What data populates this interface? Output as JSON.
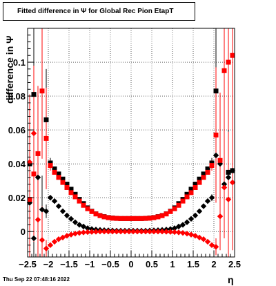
{
  "chart_data": {
    "type": "scatter",
    "title": "Fitted difference in  Ψ  for Global Rec Pion EtapT",
    "xlabel": "η",
    "ylabel": "difference in  Ψ",
    "xlim": [
      -2.5,
      2.5
    ],
    "ylim": [
      -0.015,
      0.12
    ],
    "x_ticks": [
      -2.5,
      -2,
      -1.5,
      -1,
      -0.5,
      0,
      0.5,
      1,
      1.5,
      2,
      2.5
    ],
    "x_tick_labels": [
      "−2.5",
      "−2",
      "−1.5",
      "−1",
      "−0.5",
      "0",
      "0.5",
      "1",
      "1.5",
      "2",
      "2.5"
    ],
    "y_ticks": [
      0,
      0.02,
      0.04,
      0.06,
      0.08,
      0.1
    ],
    "y_tick_labels": [
      "0",
      "0.02",
      "0.04",
      "0.06",
      "0.08",
      "0.1"
    ],
    "grid": true,
    "series": [
      {
        "color": "#000000",
        "marker": "square",
        "x": [
          -2.45,
          -2.35,
          -2.05,
          -1.95,
          -1.85,
          -1.75,
          -1.65,
          -1.55,
          -1.45,
          -1.35,
          -1.25,
          -1.15,
          -1.05,
          -0.95,
          -0.85,
          -0.75,
          -0.65,
          -0.55,
          -0.45,
          -0.35,
          -0.25,
          -0.15,
          -0.05,
          0.05,
          0.15,
          0.25,
          0.35,
          0.45,
          0.55,
          0.65,
          0.75,
          0.85,
          0.95,
          1.05,
          1.15,
          1.25,
          1.35,
          1.45,
          1.55,
          1.65,
          1.75,
          1.85,
          1.95,
          2.05,
          2.35,
          2.45
        ],
        "y": [
          0.04,
          0.081,
          0.066,
          0.0405,
          0.037,
          0.034,
          0.031,
          0.028,
          0.025,
          0.022,
          0.019,
          0.0165,
          0.014,
          0.012,
          0.0105,
          0.0095,
          0.0088,
          0.0083,
          0.008,
          0.0078,
          0.0077,
          0.0077,
          0.0077,
          0.0077,
          0.0077,
          0.0077,
          0.0078,
          0.008,
          0.0083,
          0.0088,
          0.0095,
          0.0105,
          0.012,
          0.014,
          0.0165,
          0.019,
          0.022,
          0.025,
          0.028,
          0.031,
          0.034,
          0.037,
          0.0405,
          0.083,
          0.035,
          0.036
        ],
        "yerr": [
          0.04,
          0.04,
          0.03,
          0.003,
          0.001,
          0.001,
          0.001,
          0.001,
          0.001,
          0.001,
          0.001,
          0.001,
          0.001,
          0.001,
          0.001,
          0.001,
          0.001,
          0.001,
          0.001,
          0.001,
          0.001,
          0.001,
          0.001,
          0.001,
          0.001,
          0.001,
          0.001,
          0.001,
          0.001,
          0.001,
          0.001,
          0.001,
          0.001,
          0.001,
          0.001,
          0.001,
          0.001,
          0.001,
          0.001,
          0.001,
          0.001,
          0.001,
          0.003,
          0.04,
          0.03,
          0.04
        ]
      },
      {
        "color": "#000000",
        "marker": "diamond",
        "x": [
          -2.45,
          -2.35,
          -2.25,
          -2.15,
          -2.05,
          -1.95,
          -1.85,
          -1.75,
          -1.65,
          -1.55,
          -1.45,
          -1.35,
          -1.25,
          -1.15,
          -1.05,
          -0.95,
          -0.85,
          -0.75,
          -0.65,
          -0.55,
          -0.45,
          -0.35,
          -0.25,
          -0.15,
          -0.05,
          0.05,
          0.15,
          0.25,
          0.35,
          0.45,
          0.55,
          0.65,
          0.75,
          0.85,
          0.95,
          1.05,
          1.15,
          1.25,
          1.35,
          1.45,
          1.55,
          1.65,
          1.75,
          1.85,
          1.95,
          2.05,
          2.15,
          2.25,
          2.35,
          2.45
        ],
        "y": [
          0.017,
          -0.004,
          0.032,
          0.013,
          0.012,
          0.02,
          0.018,
          0.015,
          0.012,
          0.0095,
          0.0075,
          0.0055,
          0.004,
          0.003,
          0.002,
          0.0015,
          0.0012,
          0.001,
          0.0008,
          0.0007,
          0.0006,
          0.0005,
          0.0005,
          0.0005,
          0.0005,
          0.0005,
          0.0005,
          0.0005,
          0.0005,
          0.0006,
          0.0007,
          0.0008,
          0.001,
          0.0012,
          0.0015,
          0.002,
          0.003,
          0.004,
          0.0055,
          0.0075,
          0.0095,
          0.012,
          0.015,
          0.018,
          0.02,
          0.045,
          0.04,
          0.028,
          0.032,
          0.036
        ],
        "yerr": [
          0.03,
          0.03,
          0.03,
          0.02,
          0.004,
          0.001,
          0.001,
          0.001,
          0.001,
          0.001,
          0.001,
          0.001,
          0.001,
          0.001,
          0.001,
          0.001,
          0.001,
          0.001,
          0.001,
          0.001,
          0.001,
          0.001,
          0.001,
          0.001,
          0.001,
          0.001,
          0.001,
          0.001,
          0.001,
          0.001,
          0.001,
          0.001,
          0.001,
          0.001,
          0.001,
          0.001,
          0.001,
          0.001,
          0.001,
          0.001,
          0.001,
          0.001,
          0.001,
          0.001,
          0.002,
          0.02,
          0.03,
          0.03,
          0.03,
          0.03
        ]
      },
      {
        "color": "#ff0000",
        "marker": "square",
        "x": [
          -2.45,
          -2.35,
          -2.25,
          -2.15,
          -2.05,
          -1.95,
          -1.85,
          -1.75,
          -1.65,
          -1.55,
          -1.45,
          -1.35,
          -1.25,
          -1.15,
          -1.05,
          -0.95,
          -0.85,
          -0.75,
          -0.65,
          -0.55,
          -0.45,
          -0.35,
          -0.25,
          -0.15,
          -0.05,
          0.05,
          0.15,
          0.25,
          0.35,
          0.45,
          0.55,
          0.65,
          0.75,
          0.85,
          0.95,
          1.05,
          1.15,
          1.25,
          1.35,
          1.45,
          1.55,
          1.65,
          1.75,
          1.85,
          1.95,
          2.05,
          2.15,
          2.25,
          2.35,
          2.45
        ],
        "y": [
          0.019,
          0.034,
          0.046,
          0.083,
          0.055,
          0.039,
          0.035,
          0.032,
          0.029,
          0.026,
          0.023,
          0.0205,
          0.018,
          0.0155,
          0.0135,
          0.0118,
          0.0104,
          0.0094,
          0.0087,
          0.0082,
          0.0079,
          0.0078,
          0.0077,
          0.0077,
          0.0077,
          0.0077,
          0.0077,
          0.0077,
          0.0078,
          0.0079,
          0.0082,
          0.0087,
          0.0094,
          0.0104,
          0.0118,
          0.0135,
          0.0155,
          0.018,
          0.0205,
          0.023,
          0.026,
          0.029,
          0.032,
          0.035,
          0.039,
          0.057,
          0.042,
          0.095,
          0.1,
          0.104
        ],
        "yerr": [
          0.04,
          0.04,
          0.04,
          0.04,
          0.03,
          0.003,
          0.001,
          0.001,
          0.001,
          0.001,
          0.001,
          0.001,
          0.001,
          0.001,
          0.001,
          0.001,
          0.001,
          0.001,
          0.001,
          0.001,
          0.001,
          0.001,
          0.001,
          0.001,
          0.001,
          0.001,
          0.001,
          0.001,
          0.001,
          0.001,
          0.001,
          0.001,
          0.001,
          0.001,
          0.001,
          0.001,
          0.001,
          0.001,
          0.001,
          0.001,
          0.001,
          0.001,
          0.001,
          0.001,
          0.003,
          0.04,
          0.04,
          0.04,
          0.04,
          0.04
        ]
      },
      {
        "color": "#ff0000",
        "marker": "diamond",
        "x": [
          -2.45,
          -2.35,
          -2.25,
          -2.15,
          -2.05,
          -1.95,
          -1.85,
          -1.75,
          -1.65,
          -1.55,
          -1.45,
          -1.35,
          -1.25,
          -1.15,
          -1.05,
          -0.95,
          -0.85,
          -0.75,
          -0.65,
          -0.55,
          -0.45,
          -0.35,
          -0.25,
          -0.15,
          -0.05,
          0.05,
          0.15,
          0.25,
          0.35,
          0.45,
          0.55,
          0.65,
          0.75,
          0.85,
          0.95,
          1.05,
          1.15,
          1.25,
          1.35,
          1.45,
          1.55,
          1.65,
          1.75,
          1.85,
          1.95,
          2.05,
          2.15,
          2.25,
          2.35,
          2.45
        ],
        "y": [
          0.041,
          0.058,
          0.007,
          -0.005,
          -0.01,
          -0.008,
          -0.006,
          -0.0045,
          -0.0035,
          -0.0025,
          -0.0018,
          -0.0012,
          -0.0008,
          -0.0005,
          -0.0003,
          -0.0002,
          -0.0001,
          0.0,
          0.0,
          0.0,
          0.0,
          0.0,
          0.0,
          0.0,
          0.0,
          0.0,
          0.0,
          0.0,
          0.0,
          0.0,
          0.0,
          0.0,
          0.0,
          -0.0001,
          -0.0002,
          -0.0003,
          -0.0005,
          -0.0008,
          -0.0012,
          -0.0018,
          -0.0025,
          -0.0035,
          -0.0045,
          -0.006,
          -0.008,
          -0.009,
          0.009,
          0.026,
          0.019,
          0.029
        ],
        "yerr": [
          0.04,
          0.04,
          0.03,
          0.02,
          0.005,
          0.001,
          0.001,
          0.001,
          0.001,
          0.001,
          0.001,
          0.001,
          0.001,
          0.001,
          0.001,
          0.001,
          0.001,
          0.001,
          0.001,
          0.001,
          0.001,
          0.001,
          0.001,
          0.001,
          0.001,
          0.001,
          0.001,
          0.001,
          0.001,
          0.001,
          0.001,
          0.001,
          0.001,
          0.001,
          0.001,
          0.001,
          0.001,
          0.001,
          0.001,
          0.001,
          0.001,
          0.001,
          0.001,
          0.001,
          0.001,
          0.005,
          0.02,
          0.03,
          0.04,
          0.04
        ]
      }
    ]
  },
  "footer": {
    "timestamp": "Thu Sep 22 07:48:16 2022"
  }
}
